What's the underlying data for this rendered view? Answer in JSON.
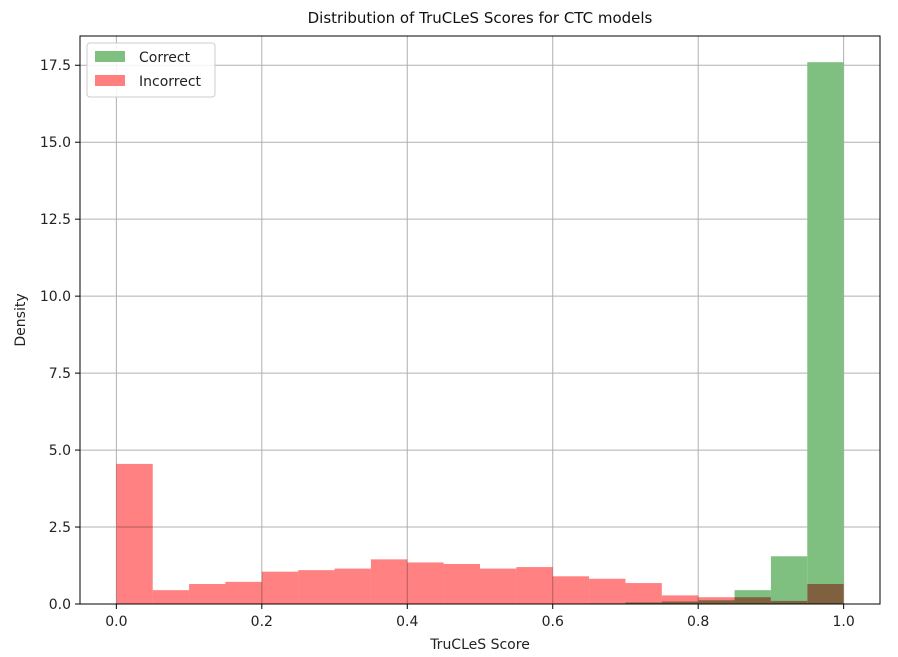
{
  "chart_data": {
    "type": "bar",
    "title": "Distribution of TruCLeS Scores for CTC models",
    "xlabel": "TruCLeS Score",
    "ylabel": "Density",
    "xlim": [
      -0.05,
      1.05
    ],
    "ylim": [
      0,
      18.45
    ],
    "xticks": [
      "0.0",
      "0.2",
      "0.4",
      "0.6",
      "0.8",
      "1.0"
    ],
    "yticks": [
      "0.0",
      "2.5",
      "5.0",
      "7.5",
      "10.0",
      "12.5",
      "15.0",
      "17.5"
    ],
    "grid": true,
    "legend_position": "top-left",
    "bin_edges": [
      0.0,
      0.05,
      0.1,
      0.15,
      0.2,
      0.25,
      0.3,
      0.35,
      0.4,
      0.45,
      0.5,
      0.55,
      0.6,
      0.65,
      0.7,
      0.75,
      0.8,
      0.85,
      0.9,
      0.95,
      1.0
    ],
    "series": [
      {
        "name": "Correct",
        "color": "#7fbf7f",
        "values": [
          0.0,
          0.0,
          0.0,
          0.0,
          0.0,
          0.0,
          0.0,
          0.0,
          0.0,
          0.0,
          0.0,
          0.0,
          0.0,
          0.02,
          0.05,
          0.08,
          0.12,
          0.45,
          1.55,
          17.6
        ]
      },
      {
        "name": "Incorrect",
        "color": "#ff7f7f",
        "values": [
          4.55,
          0.45,
          0.65,
          0.72,
          1.05,
          1.1,
          1.15,
          1.45,
          1.35,
          1.3,
          1.15,
          1.2,
          0.9,
          0.82,
          0.68,
          0.28,
          0.22,
          0.22,
          0.1,
          0.65
        ]
      }
    ]
  }
}
